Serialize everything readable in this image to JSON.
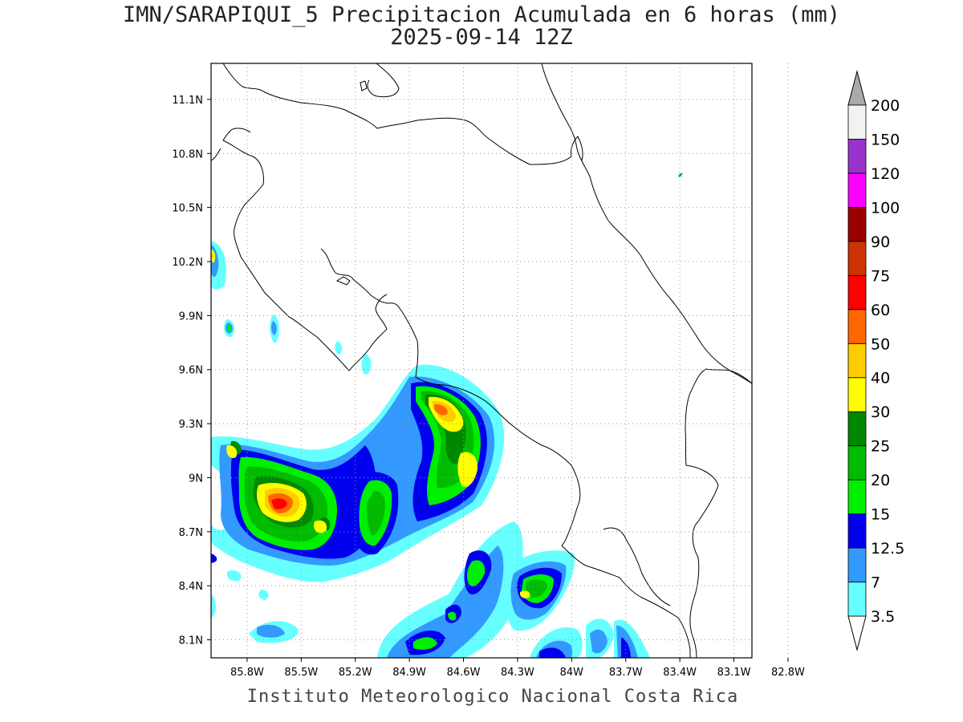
{
  "title": "IMN/SARAPIQUI_5 Precipitacion Acumulada en 6 horas (mm)",
  "subtitle": "2025-09-14 12Z",
  "footer": "Instituto Meteorologico Nacional Costa Rica",
  "map": {
    "lon_range": [
      -86.0,
      -83.0
    ],
    "lat_range": [
      8.0,
      11.3
    ],
    "x_ticks": [
      "85.8W",
      "85.5W",
      "85.2W",
      "84.9W",
      "84.6W",
      "84.3W",
      "84W",
      "83.7W",
      "83.4W",
      "83.1W",
      "82.8W"
    ],
    "y_ticks": [
      "11.1N",
      "10.8N",
      "10.5N",
      "10.2N",
      "9.9N",
      "9.6N",
      "9.3N",
      "9N",
      "8.7N",
      "8.4N",
      "8.1N"
    ],
    "grid": true
  },
  "colorbar": {
    "levels": [
      "3.5",
      "7",
      "12.5",
      "15",
      "20",
      "25",
      "30",
      "40",
      "50",
      "60",
      "75",
      "90",
      "100",
      "120",
      "150",
      "200"
    ],
    "colors": [
      "#66ffff",
      "#3399ff",
      "#0000ee",
      "#00ee00",
      "#00bb00",
      "#008800",
      "#ffff00",
      "#ffcc00",
      "#ff6600",
      "#ff0000",
      "#cc3300",
      "#990000",
      "#ff00ff",
      "#9933cc",
      "#f2f2f2"
    ],
    "over_color": "#aaaaaa",
    "under_color": "#ffffff"
  }
}
